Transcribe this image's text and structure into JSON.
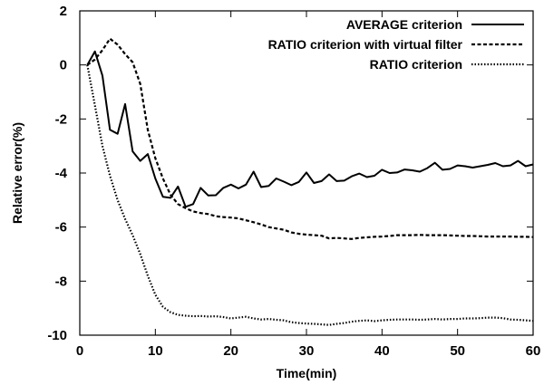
{
  "chart_data": {
    "type": "line",
    "xlabel": "Time(min)",
    "ylabel": "Relative error(%)",
    "xlim": [
      0,
      60
    ],
    "ylim": [
      -10,
      2
    ],
    "xticks": [
      0,
      10,
      20,
      30,
      40,
      50,
      60
    ],
    "yticks": [
      -10,
      -8,
      -6,
      -4,
      -2,
      0,
      2
    ],
    "grid": false,
    "legend_position": "top-right",
    "series": [
      {
        "name": "AVERAGE criterion",
        "style": "solid",
        "color": "#000000",
        "x": [
          1,
          2,
          3,
          4,
          5,
          6,
          7,
          8,
          9,
          10,
          11,
          12,
          13,
          14,
          15,
          16,
          17,
          18,
          19,
          20,
          21,
          22,
          23,
          24,
          25,
          26,
          27,
          28,
          29,
          30,
          31,
          32,
          33,
          34,
          35,
          36,
          37,
          38,
          39,
          40,
          41,
          42,
          43,
          44,
          45,
          46,
          47,
          48,
          49,
          50,
          51,
          52,
          53,
          54,
          55,
          56,
          57,
          58,
          59,
          60
        ],
        "y": [
          0,
          0.5,
          -0.4,
          -2.4,
          -2.55,
          -1.45,
          -3.2,
          -3.55,
          -3.3,
          -4.2,
          -4.88,
          -4.92,
          -4.5,
          -5.25,
          -5.15,
          -4.55,
          -4.83,
          -4.82,
          -4.55,
          -4.43,
          -4.57,
          -4.43,
          -3.95,
          -4.52,
          -4.48,
          -4.2,
          -4.32,
          -4.45,
          -4.33,
          -3.98,
          -4.37,
          -4.3,
          -4.05,
          -4.3,
          -4.28,
          -4.12,
          -4.02,
          -4.15,
          -4.1,
          -3.88,
          -4.0,
          -3.98,
          -3.87,
          -3.9,
          -3.95,
          -3.82,
          -3.62,
          -3.88,
          -3.85,
          -3.72,
          -3.75,
          -3.8,
          -3.75,
          -3.7,
          -3.63,
          -3.75,
          -3.72,
          -3.55,
          -3.75,
          -3.68
        ]
      },
      {
        "name": "RATIO criterion with virtual filter",
        "style": "dashed",
        "color": "#000000",
        "x": [
          1,
          2,
          3,
          4,
          5,
          6,
          7,
          8,
          9,
          10,
          11,
          12,
          13,
          14,
          15,
          16,
          17,
          18,
          19,
          20,
          21,
          22,
          23,
          24,
          25,
          26,
          27,
          28,
          29,
          30,
          31,
          32,
          33,
          34,
          35,
          36,
          37,
          38,
          39,
          40,
          41,
          42,
          43,
          44,
          45,
          46,
          47,
          48,
          49,
          50,
          51,
          52,
          53,
          54,
          55,
          56,
          57,
          58,
          59,
          60
        ],
        "y": [
          0,
          0.2,
          0.55,
          0.97,
          0.75,
          0.4,
          0.1,
          -0.7,
          -2.4,
          -3.45,
          -4.2,
          -4.8,
          -5.15,
          -5.3,
          -5.42,
          -5.48,
          -5.52,
          -5.6,
          -5.63,
          -5.65,
          -5.68,
          -5.75,
          -5.82,
          -5.9,
          -6.0,
          -6.05,
          -6.1,
          -6.2,
          -6.25,
          -6.28,
          -6.3,
          -6.32,
          -6.42,
          -6.4,
          -6.42,
          -6.44,
          -6.4,
          -6.38,
          -6.36,
          -6.35,
          -6.33,
          -6.3,
          -6.3,
          -6.3,
          -6.29,
          -6.3,
          -6.3,
          -6.3,
          -6.31,
          -6.32,
          -6.33,
          -6.33,
          -6.34,
          -6.35,
          -6.35,
          -6.35,
          -6.35,
          -6.36,
          -6.36,
          -6.37
        ]
      },
      {
        "name": "RATIO criterion",
        "style": "dotted",
        "color": "#000000",
        "x": [
          1,
          2,
          3,
          4,
          5,
          6,
          7,
          8,
          9,
          10,
          11,
          12,
          13,
          14,
          15,
          16,
          17,
          18,
          19,
          20,
          21,
          22,
          23,
          24,
          25,
          26,
          27,
          28,
          29,
          30,
          31,
          32,
          33,
          34,
          35,
          36,
          37,
          38,
          39,
          40,
          41,
          42,
          43,
          44,
          45,
          46,
          47,
          48,
          49,
          50,
          51,
          52,
          53,
          54,
          55,
          56,
          57,
          58,
          59,
          60
        ],
        "y": [
          0,
          -1.5,
          -3.0,
          -4.1,
          -5.0,
          -5.7,
          -6.3,
          -7.0,
          -7.8,
          -8.5,
          -8.95,
          -9.15,
          -9.25,
          -9.28,
          -9.3,
          -9.29,
          -9.31,
          -9.3,
          -9.33,
          -9.38,
          -9.35,
          -9.32,
          -9.38,
          -9.42,
          -9.4,
          -9.43,
          -9.45,
          -9.52,
          -9.55,
          -9.57,
          -9.58,
          -9.6,
          -9.62,
          -9.58,
          -9.55,
          -9.5,
          -9.47,
          -9.45,
          -9.48,
          -9.45,
          -9.43,
          -9.42,
          -9.42,
          -9.42,
          -9.43,
          -9.42,
          -9.4,
          -9.42,
          -9.4,
          -9.4,
          -9.38,
          -9.38,
          -9.37,
          -9.35,
          -9.35,
          -9.37,
          -9.42,
          -9.43,
          -9.45,
          -9.47
        ]
      }
    ]
  }
}
